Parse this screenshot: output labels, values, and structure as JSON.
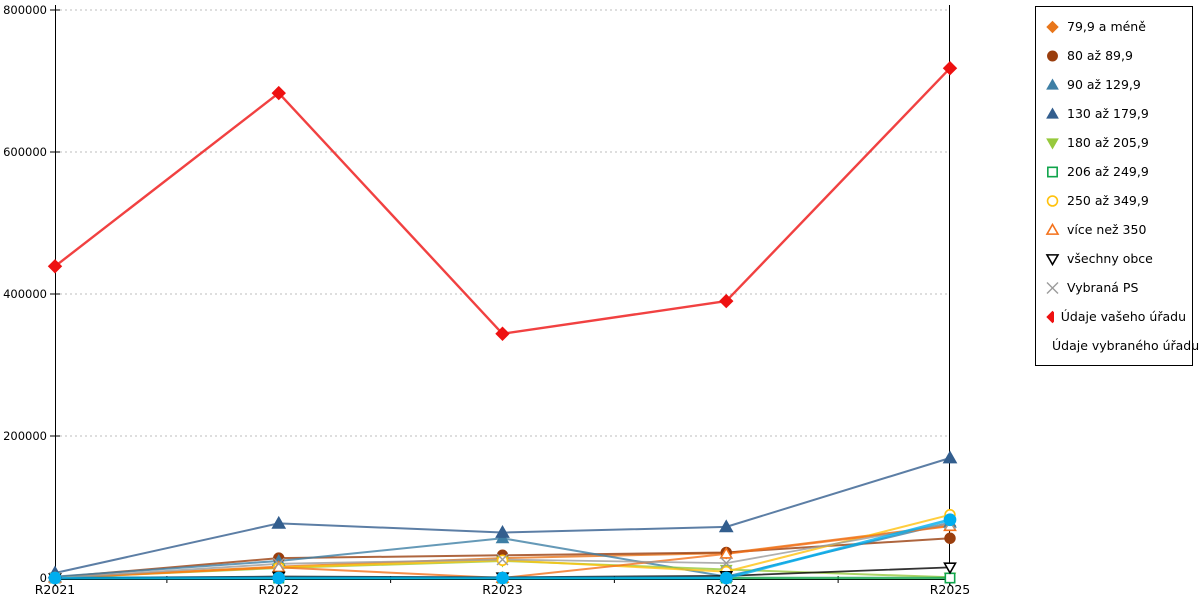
{
  "chart_data": {
    "type": "line",
    "title": "",
    "xlabel": "",
    "ylabel": "",
    "grid": "horizontal-dotted",
    "legend_position": "right-outside",
    "x_axis": {
      "labels": [
        "R2021",
        "R2022",
        "R2023",
        "R2024",
        "R2025"
      ]
    },
    "y_axis": {
      "min": 0,
      "max": 800000,
      "ticks": [
        0,
        200000,
        400000,
        600000,
        800000
      ],
      "tick_labels": [
        "0",
        "200000",
        "400000",
        "600000",
        "800000"
      ]
    },
    "categories": [
      "R2021",
      "R2022",
      "R2023",
      "R2024",
      "R2025"
    ],
    "series": [
      {
        "name": "79,9 a méně",
        "marker": "diamond",
        "filled": true,
        "color": "#E8761B",
        "line_width": 2,
        "marker_size": 5.5,
        "values": [
          0,
          16000,
          28000,
          35000,
          74000
        ]
      },
      {
        "name": "80 až 89,9",
        "marker": "circle",
        "filled": true,
        "color": "#9A3E0E",
        "line_width": 2,
        "marker_size": 5.8,
        "values": [
          1000,
          28000,
          32000,
          36000,
          56000
        ]
      },
      {
        "name": "90 až 129,9",
        "marker": "triangle-up",
        "filled": true,
        "color": "#3E7FA5",
        "line_width": 2,
        "marker_size": 6,
        "values": [
          2000,
          24000,
          56000,
          2000,
          78000
        ]
      },
      {
        "name": "130 až 179,9",
        "marker": "triangle-up",
        "filled": true,
        "color": "#335E8E",
        "line_width": 2,
        "marker_size": 6.5,
        "values": [
          7000,
          77000,
          64000,
          72000,
          169000
        ]
      },
      {
        "name": "180 až 205,9",
        "marker": "triangle-down",
        "filled": true,
        "color": "#97C93D",
        "line_width": 2,
        "marker_size": 5.5,
        "values": [
          0,
          14000,
          24000,
          12000,
          1000
        ]
      },
      {
        "name": "206 až 249,9",
        "marker": "square",
        "filled": false,
        "color": "#0FA44B",
        "line_width": 2.4,
        "marker_size": 5.5,
        "values": [
          0,
          0,
          0,
          0,
          0
        ]
      },
      {
        "name": "250 až 349,9",
        "marker": "circle",
        "filled": false,
        "color": "#FFC20E",
        "line_width": 2,
        "marker_size": 5.5,
        "values": [
          0,
          15000,
          25000,
          9000,
          89000
        ]
      },
      {
        "name": "více než 350",
        "marker": "triangle-up",
        "filled": false,
        "color": "#F4721B",
        "line_width": 2,
        "marker_size": 5.5,
        "values": [
          0,
          15000,
          0,
          34000,
          73000
        ]
      },
      {
        "name": "všechny obce",
        "marker": "triangle-down",
        "filled": false,
        "color": "#000000",
        "line_width": 1.8,
        "marker_size": 5.5,
        "values": [
          0,
          2000,
          1000,
          3000,
          15000
        ]
      },
      {
        "name": "Vybraná PS",
        "marker": "x",
        "filled": false,
        "color": "#9B9B9B",
        "line_width": 1.8,
        "marker_size": 5.5,
        "values": [
          0,
          20000,
          26000,
          21000,
          77000
        ]
      },
      {
        "name": "Údaje vašeho úřadu",
        "marker": "diamond",
        "filled": true,
        "color": "#EE1111",
        "line_width": 2.4,
        "marker_size": 6.5,
        "values": [
          439000,
          683000,
          344000,
          390000,
          718000
        ]
      },
      {
        "name": "Údaje vybraného úřadu",
        "marker": "circle",
        "filled": true,
        "color": "#00AEEF",
        "line_width": 2.8,
        "marker_size": 6.5,
        "values": [
          0,
          0,
          0,
          0,
          82000
        ]
      }
    ]
  }
}
